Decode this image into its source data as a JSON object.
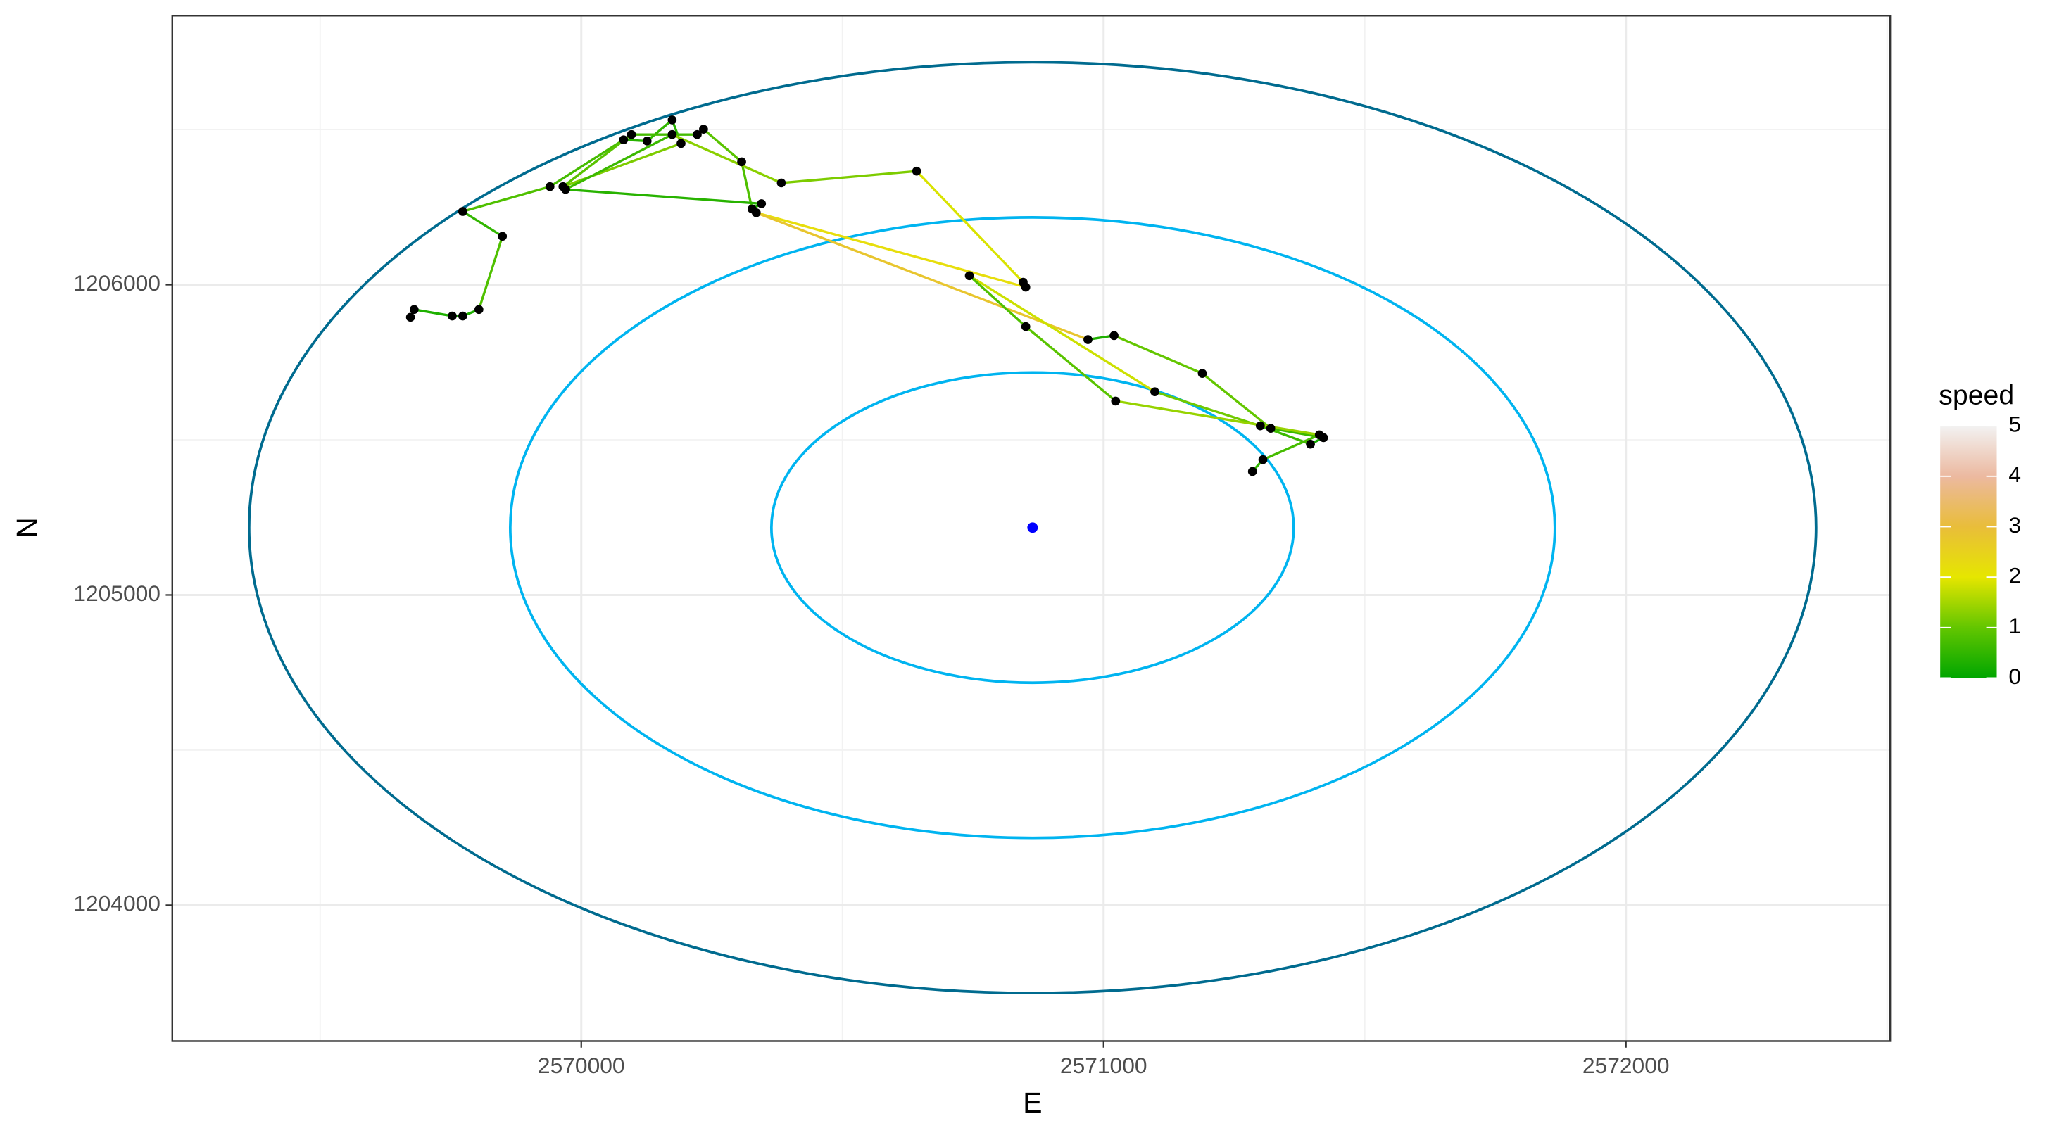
{
  "chart_data": {
    "type": "track",
    "x_label": "E",
    "y_label": "N",
    "x": [
      2569673,
      2569680,
      2569753,
      2569773,
      2569804,
      2569849,
      2569773,
      2569940,
      2570081,
      2570126,
      2570174,
      2570191,
      2569965,
      2570096,
      2570222,
      2570234,
      2570307,
      2570327,
      2570345,
      2569970,
      2570174,
      2570383,
      2570642,
      2570846,
      2570851,
      2570335,
      2570970,
      2571020,
      2571189,
      2571320,
      2571421,
      2571396,
      2571300,
      2571098,
      2570743,
      2570851,
      2571023,
      2571413,
      2571305,
      2571285
    ],
    "y": [
      1205895,
      1205920,
      1205899,
      1205899,
      1205920,
      1206156,
      1206236,
      1206316,
      1206467,
      1206463,
      1206531,
      1206455,
      1206316,
      1206484,
      1206484,
      1206501,
      1206396,
      1206244,
      1206261,
      1206307,
      1206484,
      1206328,
      1206366,
      1206008,
      1205992,
      1206232,
      1205823,
      1205836,
      1205714,
      1205537,
      1205507,
      1205486,
      1205545,
      1205655,
      1206029,
      1205865,
      1205625,
      1205516,
      1205436,
      1205398
    ],
    "speed": [
      null,
      0.3,
      0.3,
      0.2,
      0.3,
      0.8,
      0.5,
      0.8,
      0.7,
      0.4,
      0.5,
      0.4,
      1.2,
      0.9,
      0.7,
      0.3,
      0.9,
      0.8,
      0.3,
      0.4,
      0.6,
      1.3,
      1.2,
      1.9,
      0.2,
      2.2,
      2.8,
      0.3,
      1.0,
      1.0,
      0.6,
      0.2,
      0.6,
      1.1,
      1.8,
      0.8,
      0.9,
      1.4,
      0.7,
      0.5
    ],
    "point_color": "#000000",
    "center": {
      "x": 2570864,
      "y": 1205217,
      "color": "#0000ff"
    },
    "rings": [
      {
        "r": 500,
        "color": "#00b4f0"
      },
      {
        "r": 1000,
        "color": "#00b4f0"
      },
      {
        "r": 1500,
        "color": "#006b8f"
      }
    ],
    "xlim": [
      2569217,
      2572506
    ],
    "ylim": [
      1203562,
      1206867
    ],
    "xticks": [
      2570000,
      2571000,
      2572000
    ],
    "yticks": [
      1204000,
      1205000,
      1206000
    ],
    "grid": true,
    "colorscale": {
      "title": "speed",
      "lim": [
        0,
        5
      ],
      "ticks": [
        0,
        1,
        2,
        3,
        4,
        5
      ],
      "colors": [
        "#00a600",
        "#63c600",
        "#e6e600",
        "#e9bd3a",
        "#ecb9a0",
        "#f2f2f2"
      ]
    }
  }
}
